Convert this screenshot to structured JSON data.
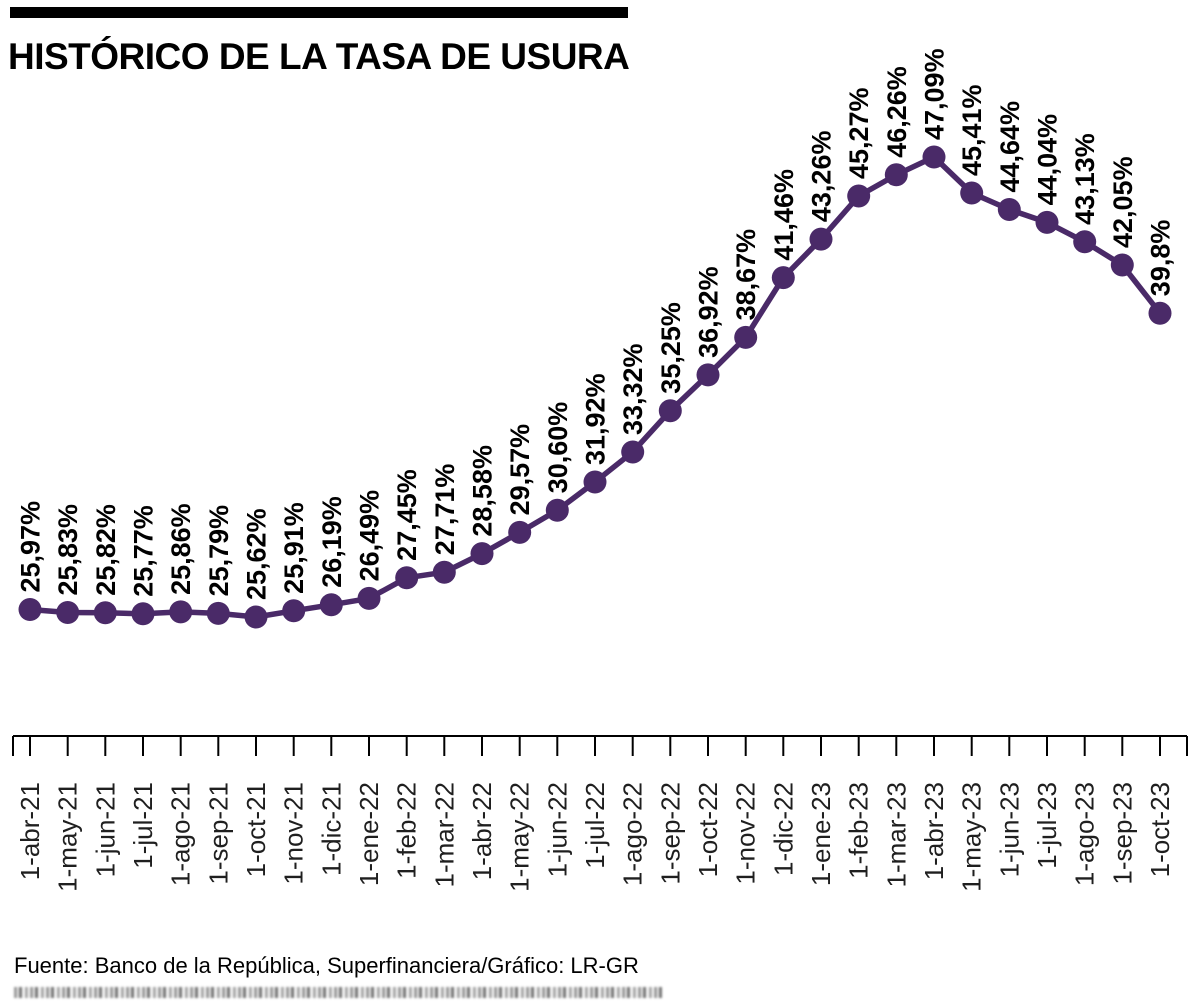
{
  "header": {
    "title": "HISTÓRICO DE LA TASA DE USURA"
  },
  "footer": {
    "source": "Fuente: Banco de la República, Superfinanciera/Gráfico: LR-GR"
  },
  "chart_data": {
    "type": "line",
    "title": "HISTÓRICO DE LA TASA DE USURA",
    "categories": [
      "1-abr-21",
      "1-may-21",
      "1-jun-21",
      "1-jul-21",
      "1-ago-21",
      "1-sep-21",
      "1-oct-21",
      "1-nov-21",
      "1-dic-21",
      "1-ene-22",
      "1-feb-22",
      "1-mar-22",
      "1-abr-22",
      "1-may-22",
      "1-jun-22",
      "1-jul-22",
      "1-ago-22",
      "1-sep-22",
      "1-oct-22",
      "1-nov-22",
      "1-dic-22",
      "1-ene-23",
      "1-feb-23",
      "1-mar-23",
      "1-abr-23",
      "1-may-23",
      "1-jun-23",
      "1-jul-23",
      "1-ago-23",
      "1-sep-23",
      "1-oct-23"
    ],
    "values": [
      25.97,
      25.83,
      25.82,
      25.77,
      25.86,
      25.79,
      25.62,
      25.91,
      26.19,
      26.49,
      27.45,
      27.71,
      28.58,
      29.57,
      30.6,
      31.92,
      33.32,
      35.25,
      36.92,
      38.67,
      41.46,
      43.26,
      45.27,
      46.26,
      47.09,
      45.41,
      44.64,
      44.04,
      43.13,
      42.05,
      39.8
    ],
    "point_labels": [
      "25,97%",
      "25,83%",
      "25,82%",
      "25,77%",
      "25,86%",
      "25,79%",
      "25,62%",
      "25,91%",
      "26,19%",
      "26,49%",
      "27,45%",
      "27,71%",
      "28,58%",
      "29,57%",
      "30,60%",
      "31,92%",
      "33,32%",
      "35,25%",
      "36,92%",
      "38,67%",
      "41,46%",
      "43,26%",
      "45,27%",
      "46,26%",
      "47,09%",
      "45,41%",
      "44,64%",
      "44,04%",
      "43,13%",
      "42,05%",
      "39,8%"
    ],
    "xlabel": "",
    "ylabel": "",
    "ylim": [
      25,
      48
    ],
    "grid": false,
    "legend": "none",
    "colors": {
      "line": "#4a2a68",
      "point": "#4a2a68",
      "value_label": "#000000",
      "axis": "#000000",
      "tick_label": "#1f1f1f"
    }
  }
}
